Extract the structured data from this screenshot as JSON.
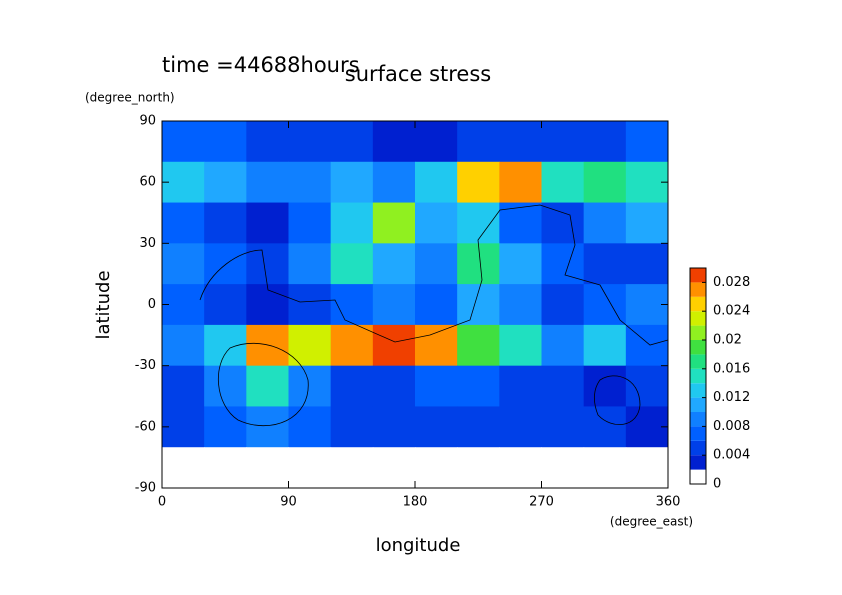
{
  "chart_data": {
    "type": "heatmap",
    "title": "surface stress",
    "subtitle": "time =44688hours",
    "xlabel": "longitude",
    "xunit": "(degree_east)",
    "ylabel": "latitude",
    "yunit": "(degree_north)",
    "x": [
      15,
      45,
      75,
      105,
      135,
      165,
      195,
      225,
      255,
      285,
      315,
      345
    ],
    "y": [
      80,
      60,
      40,
      20,
      0,
      -20,
      -40,
      -60,
      -80
    ],
    "z": [
      [
        0.006,
        0.006,
        0.005,
        0.005,
        0.004,
        0.003,
        0.003,
        0.004,
        0.004,
        0.004,
        0.005,
        0.006
      ],
      [
        0.012,
        0.01,
        0.008,
        0.009,
        0.01,
        0.008,
        0.012,
        0.024,
        0.026,
        0.014,
        0.016,
        0.014
      ],
      [
        0.006,
        0.004,
        0.003,
        0.006,
        0.012,
        0.02,
        0.01,
        0.012,
        0.006,
        0.004,
        0.008,
        0.01
      ],
      [
        0.008,
        0.006,
        0.004,
        0.008,
        0.014,
        0.01,
        0.008,
        0.016,
        0.01,
        0.006,
        0.004,
        0.004
      ],
      [
        0.006,
        0.004,
        0.002,
        0.004,
        0.006,
        0.008,
        0.006,
        0.01,
        0.008,
        0.004,
        0.006,
        0.008
      ],
      [
        0.008,
        0.012,
        0.026,
        0.022,
        0.026,
        0.028,
        0.026,
        0.018,
        0.014,
        0.008,
        0.012,
        0.006
      ],
      [
        0.004,
        0.008,
        0.014,
        0.008,
        0.004,
        0.004,
        0.006,
        0.006,
        0.004,
        0.004,
        0.002,
        0.004
      ],
      [
        0.004,
        0.006,
        0.008,
        0.006,
        0.004,
        0.004,
        0.004,
        0.004,
        0.004,
        0.004,
        0.004,
        0.002
      ],
      [
        0,
        0,
        0,
        0,
        0,
        0,
        0,
        0,
        0,
        0,
        0,
        0
      ]
    ],
    "xlim": [
      0,
      360
    ],
    "xticks": [
      0,
      90,
      180,
      270,
      360
    ],
    "ylim": [
      -90,
      90
    ],
    "yticks": [
      -90,
      -60,
      -30,
      0,
      30,
      60,
      90
    ],
    "colorbar": {
      "levels": [
        0,
        0.002,
        0.004,
        0.006,
        0.008,
        0.01,
        0.012,
        0.014,
        0.016,
        0.018,
        0.02,
        0.022,
        0.024,
        0.026,
        0.028,
        0.03
      ],
      "colors": [
        "#ffffff",
        "#0020d0",
        "#0040e8",
        "#0060ff",
        "#1080ff",
        "#20a8ff",
        "#20c8f0",
        "#20e0c0",
        "#20e080",
        "#40e040",
        "#90f020",
        "#d0f000",
        "#ffd000",
        "#ff9000",
        "#f04000"
      ],
      "ticks": [
        0,
        0.004,
        0.008,
        0.012,
        0.016,
        0.02,
        0.024,
        0.028
      ]
    }
  }
}
